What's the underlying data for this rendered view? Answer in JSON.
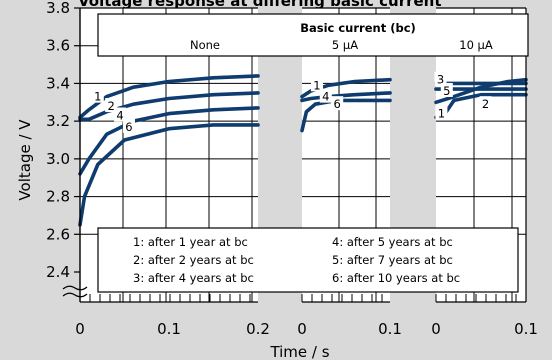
{
  "chart_data": {
    "type": "line",
    "title": "Voltage response at differing basic current",
    "xlabel": "Time / s",
    "ylabel": "Voltage / V",
    "ylim": [
      2.4,
      3.8
    ],
    "yticks": [
      "2.4",
      "2.6",
      "2.8",
      "3.0",
      "3.2",
      "3.4",
      "3.6",
      "3.8"
    ],
    "grid": true,
    "legend": {
      "position": "top",
      "title": "Basic current (bc)",
      "entries": [
        "None",
        "5 µA",
        "10 µA"
      ]
    },
    "curve_key": {
      "position": "bottom",
      "entries": [
        "1: after 1 year at bc",
        "2: after 2 years at bc",
        "3: after 4 years at bc",
        "4: after 5 years at bc",
        "5: after 7 years at bc",
        "6: after 10 years at bc"
      ]
    },
    "panels": [
      {
        "name": "None",
        "xlim": [
          0,
          0.2
        ],
        "xticks": [
          "0",
          "0.1",
          "0.2"
        ],
        "series": [
          {
            "name": "1",
            "x": [
              0,
              0.01,
              0.03,
              0.06,
              0.1,
              0.15,
              0.2
            ],
            "y": [
              3.22,
              3.26,
              3.33,
              3.38,
              3.41,
              3.43,
              3.44
            ]
          },
          {
            "name": "2",
            "x": [
              0,
              0.01,
              0.03,
              0.06,
              0.1,
              0.15,
              0.2
            ],
            "y": [
              3.21,
              3.21,
              3.25,
              3.29,
              3.32,
              3.34,
              3.35
            ]
          },
          {
            "name": "4",
            "x": [
              0,
              0.01,
              0.03,
              0.06,
              0.1,
              0.15,
              0.2
            ],
            "y": [
              2.92,
              3.0,
              3.13,
              3.2,
              3.24,
              3.26,
              3.27
            ]
          },
          {
            "name": "6",
            "x": [
              0,
              0.005,
              0.02,
              0.05,
              0.1,
              0.15,
              0.2
            ],
            "y": [
              2.65,
              2.8,
              2.97,
              3.1,
              3.16,
              3.18,
              3.18
            ]
          }
        ]
      },
      {
        "name": "5 µA",
        "xlim": [
          0,
          0.1
        ],
        "xticks": [
          "0",
          "0.1"
        ],
        "series": [
          {
            "name": "1",
            "x": [
              0,
              0.01,
              0.03,
              0.06,
              0.1
            ],
            "y": [
              3.33,
              3.36,
              3.39,
              3.41,
              3.42
            ]
          },
          {
            "name": "4",
            "x": [
              0,
              0.01,
              0.03,
              0.06,
              0.1
            ],
            "y": [
              3.31,
              3.32,
              3.33,
              3.34,
              3.35
            ]
          },
          {
            "name": "6",
            "x": [
              0,
              0.005,
              0.015,
              0.04,
              0.07,
              0.1
            ],
            "y": [
              3.15,
              3.25,
              3.29,
              3.31,
              3.31,
              3.31
            ]
          }
        ]
      },
      {
        "name": "10 µA",
        "xlim": [
          0,
          0.1
        ],
        "xticks": [
          "0",
          "0.1"
        ],
        "series": [
          {
            "name": "3",
            "x": [
              0,
              0.1
            ],
            "y": [
              3.4,
              3.4
            ]
          },
          {
            "name": "5",
            "x": [
              0,
              0.1
            ],
            "y": [
              3.37,
              3.37
            ]
          },
          {
            "name": "1",
            "x": [
              0,
              0.01,
              0.02,
              0.05,
              0.08,
              0.1
            ],
            "y": [
              3.22,
              3.24,
              3.31,
              3.34,
              3.34,
              3.34
            ]
          },
          {
            "name": "2",
            "x": [
              0,
              0.02,
              0.05,
              0.08,
              0.1
            ],
            "y": [
              3.3,
              3.33,
              3.38,
              3.41,
              3.42
            ]
          }
        ]
      }
    ]
  }
}
